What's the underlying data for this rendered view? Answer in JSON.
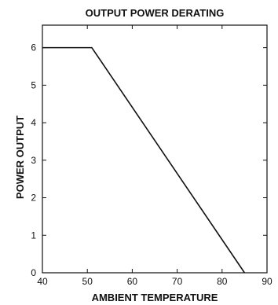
{
  "chart_data": {
    "type": "line",
    "title": "OUTPUT POWER DERATING",
    "xlabel": "AMBIENT TEMPERATURE",
    "ylabel": "POWER OUTPUT",
    "xlim": [
      40,
      90
    ],
    "ylim": [
      0,
      6.6
    ],
    "x_ticks": [
      40,
      50,
      60,
      70,
      80,
      90
    ],
    "y_ticks": [
      0,
      1,
      2,
      3,
      4,
      5,
      6
    ],
    "grid": false,
    "legend": "none",
    "series": [
      {
        "x": [
          40,
          51,
          85
        ],
        "y": [
          6,
          6,
          0
        ]
      }
    ],
    "colors": {
      "line": "#111111",
      "axis": "#111111",
      "background": "#ffffff"
    }
  }
}
